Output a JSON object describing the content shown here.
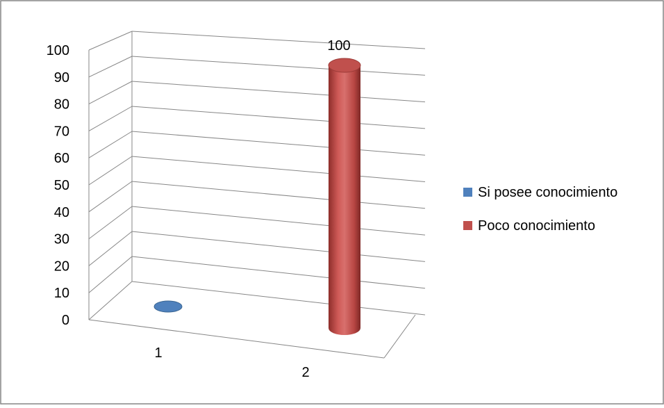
{
  "chart_data": {
    "type": "bar",
    "style": "3d-cylinder",
    "categories": [
      "1",
      "2"
    ],
    "series": [
      {
        "name": "Si posee conocimiento",
        "color": "#4F81BD",
        "values": [
          0,
          null
        ]
      },
      {
        "name": "Poco conocimiento",
        "color": "#C0504D",
        "values": [
          null,
          100
        ]
      }
    ],
    "data_labels": [
      {
        "series": 1,
        "category": 1,
        "text": "100"
      }
    ],
    "y_ticks": [
      "0",
      "10",
      "20",
      "30",
      "40",
      "50",
      "60",
      "70",
      "80",
      "90",
      "100"
    ],
    "ylim": [
      0,
      100
    ],
    "grid": true,
    "legend_position": "right"
  }
}
